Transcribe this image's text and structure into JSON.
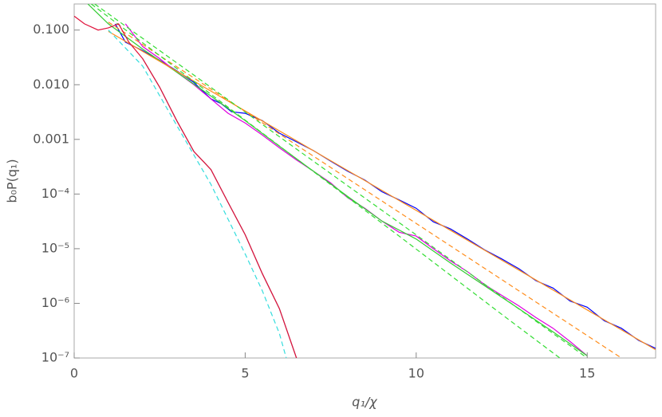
{
  "chart_data": {
    "type": "line",
    "xlabel": "q₁/χ",
    "ylabel": "b₀P(q₁)",
    "xlim": [
      0,
      17
    ],
    "ylim": [
      1e-07,
      0.3
    ],
    "log_y": true,
    "grid": false,
    "xticks": [
      0,
      5,
      10,
      15
    ],
    "yticks": [
      {
        "value": 0.1,
        "label": "0.100"
      },
      {
        "value": 0.01,
        "label": "0.010"
      },
      {
        "value": 0.001,
        "label": "0.001"
      },
      {
        "value": 0.0001,
        "label": "10⁻⁴"
      },
      {
        "value": 1e-05,
        "label": "10⁻⁵"
      },
      {
        "value": 1e-06,
        "label": "10⁻⁶"
      },
      {
        "value": 1e-07,
        "label": "10⁻⁷"
      }
    ],
    "series": [
      {
        "color": "#0000ff",
        "dash": false,
        "x": [
          1.2,
          1.5,
          2,
          2.5,
          3,
          3.5,
          4,
          4.3,
          4.6,
          5,
          5.5,
          6,
          6.5,
          7,
          7.5,
          8,
          8.5,
          9,
          9.5,
          10,
          10.5,
          11,
          11.5,
          12,
          12.5,
          13,
          13.5,
          14,
          14.5,
          15,
          15.5,
          16,
          16.5,
          17
        ],
        "values": [
          0.13,
          0.06,
          0.042,
          0.028,
          0.018,
          0.011,
          0.0055,
          0.0045,
          0.0032,
          0.003,
          0.0022,
          0.0013,
          0.0009,
          0.00062,
          0.0004,
          0.00026,
          0.00018,
          0.00011,
          7.8e-05,
          5.5e-05,
          3.1e-05,
          2.3e-05,
          1.5e-05,
          9.5e-06,
          6.5e-06,
          4.3e-06,
          2.6e-06,
          1.9e-06,
          1.1e-06,
          8.5e-07,
          4.8e-07,
          3.5e-07,
          2.1e-07,
          1.5e-07
        ]
      },
      {
        "color": "#e000e0",
        "dash": false,
        "x": [
          1.5,
          2,
          2.5,
          3,
          3.5,
          4,
          4.5,
          5,
          5.5,
          6,
          6.5,
          7,
          7.5,
          8,
          8.5,
          9,
          9.5,
          10,
          10.5,
          11,
          11.5,
          12,
          12.5,
          13,
          13.5,
          14,
          14.5,
          15
        ],
        "values": [
          0.13,
          0.05,
          0.03,
          0.017,
          0.01,
          0.0055,
          0.003,
          0.002,
          0.0012,
          0.0007,
          0.00042,
          0.00026,
          0.00016,
          8.5e-05,
          5.5e-05,
          3.2e-05,
          2e-05,
          1.7e-05,
          1e-05,
          6e-06,
          3.8e-06,
          2.2e-06,
          1.4e-06,
          9e-07,
          5.5e-07,
          3.5e-07,
          2e-07,
          1.1e-07
        ]
      },
      {
        "color": "#33cc33",
        "dash": false,
        "x": [
          0.4,
          1,
          2,
          3,
          4,
          5,
          6,
          7,
          8,
          9,
          10,
          11,
          12,
          13,
          14,
          15
        ],
        "values": [
          0.3,
          0.13,
          0.045,
          0.017,
          0.0062,
          0.0022,
          0.00075,
          0.00026,
          9e-05,
          3.2e-05,
          1.5e-05,
          5.5e-06,
          2.1e-06,
          8e-07,
          3e-07,
          1.1e-07
        ]
      },
      {
        "color": "#ff8c1a",
        "dash": false,
        "x": [
          1,
          3,
          5,
          7,
          9,
          11,
          13,
          15,
          17
        ],
        "values": [
          0.0946,
          0.0177,
          0.00331,
          0.000619,
          0.000116,
          2.17e-05,
          4.06e-06,
          7.59e-07,
          1.42e-07
        ]
      },
      {
        "color": "#ff8c1a",
        "dash": true,
        "x": [
          1,
          4,
          7,
          10,
          13,
          16
        ],
        "values": [
          0.14,
          0.0083,
          0.00049,
          2.9e-05,
          1.7e-06,
          1e-07
        ]
      },
      {
        "color": "#33dd33",
        "dash": true,
        "x": [
          0.5,
          3.5,
          6.5,
          9.5,
          12.5,
          14.2
        ],
        "values": [
          0.3,
          0.0115,
          0.00044,
          1.7e-05,
          6.3e-07,
          1e-07
        ]
      },
      {
        "color": "#33dd33",
        "dash": true,
        "x": [
          0.6,
          3.6,
          6.6,
          9.6,
          12.6,
          15
        ],
        "values": [
          0.3,
          0.0135,
          0.0006,
          2.7e-05,
          1.2e-06,
          1e-07
        ]
      },
      {
        "color": "#33dddd",
        "dash": true,
        "x": [
          1,
          2,
          3,
          4,
          5,
          5.5,
          6,
          6.2
        ],
        "values": [
          0.1,
          0.022,
          0.0018,
          0.00015,
          8e-06,
          1.7e-06,
          2.8e-07,
          1e-07
        ]
      },
      {
        "color": "#708090",
        "dash": false,
        "x": [
          2,
          2.5,
          3,
          3.5,
          4,
          4.5,
          5,
          5.5,
          6,
          6.5
        ],
        "values": [
          0.03,
          0.009,
          0.0022,
          0.0006,
          0.00028,
          7e-05,
          1.8e-05,
          3.5e-06,
          8e-07,
          1e-07
        ]
      },
      {
        "color": "#e0103a",
        "dash": false,
        "x": [
          0,
          0.3,
          0.7,
          1,
          1.3,
          1.6,
          2,
          2.5,
          3,
          3.5,
          4,
          4.5,
          5,
          5.5,
          6,
          6.5
        ],
        "values": [
          0.18,
          0.13,
          0.1,
          0.11,
          0.13,
          0.06,
          0.03,
          0.009,
          0.0022,
          0.0006,
          0.00028,
          7e-05,
          1.8e-05,
          3.5e-06,
          8e-07,
          1e-07
        ]
      }
    ]
  }
}
